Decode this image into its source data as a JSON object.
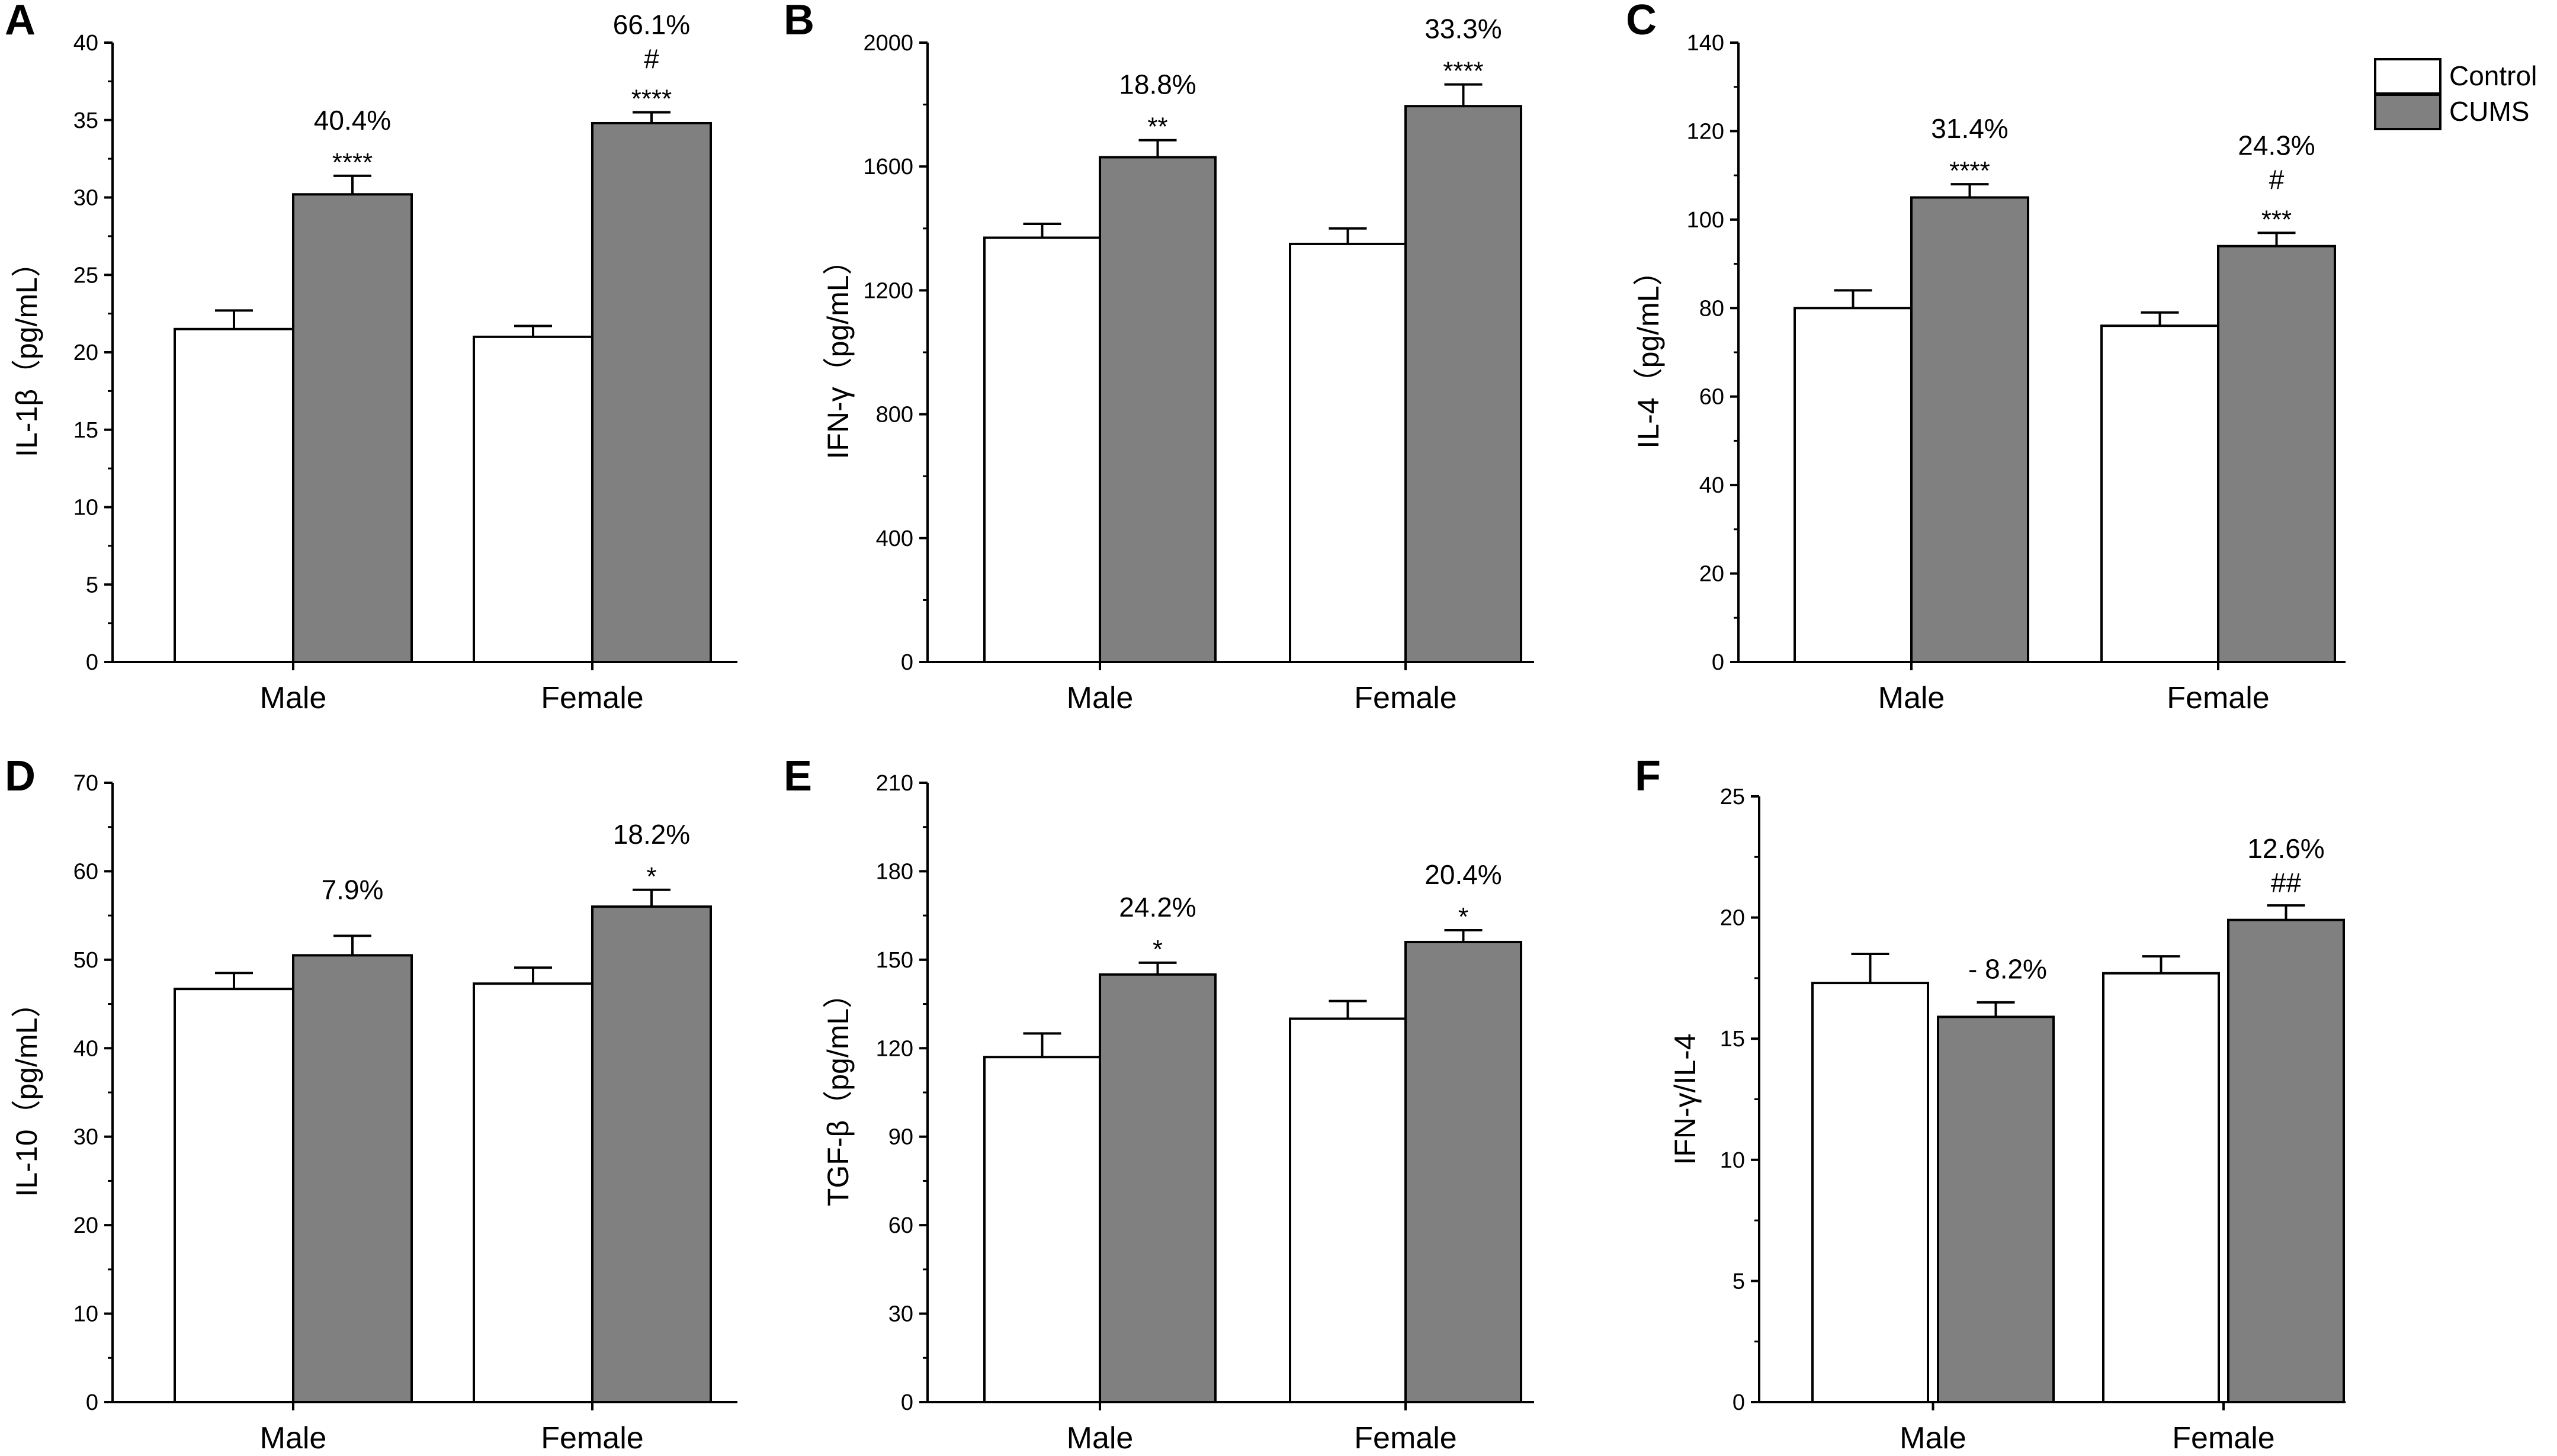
{
  "legend": {
    "entries": [
      {
        "label": "Control",
        "color": "#ffffff"
      },
      {
        "label": "CUMS",
        "color": "#808080"
      }
    ]
  },
  "chart_data": [
    {
      "panel": "A",
      "type": "bar",
      "ylabel": "IL-1β（pg/mL）",
      "categories": [
        "Male",
        "Female"
      ],
      "ylim": [
        0,
        40
      ],
      "yticks": [
        "0",
        "5",
        "10",
        "15",
        "20",
        "25",
        "30",
        "35",
        "40"
      ],
      "series": [
        {
          "name": "Control",
          "values": [
            21.5,
            21.0
          ],
          "errors": [
            1.2,
            0.7
          ]
        },
        {
          "name": "CUMS",
          "values": [
            30.2,
            34.8
          ],
          "errors": [
            1.2,
            0.7
          ]
        }
      ],
      "annotations": [
        {
          "series": "CUMS",
          "category": "Male",
          "percent": "40.4%",
          "hash": "",
          "stars": "****"
        },
        {
          "series": "CUMS",
          "category": "Female",
          "percent": "66.1%",
          "hash": "#",
          "stars": "****"
        }
      ]
    },
    {
      "panel": "B",
      "type": "bar",
      "ylabel": "IFN-γ（pg/mL）",
      "categories": [
        "Male",
        "Female"
      ],
      "ylim": [
        0,
        2000
      ],
      "yticks": [
        "0",
        "400",
        "800",
        "1200",
        "1600",
        "2000"
      ],
      "series": [
        {
          "name": "Control",
          "values": [
            1370,
            1350
          ],
          "errors": [
            45,
            50
          ]
        },
        {
          "name": "CUMS",
          "values": [
            1630,
            1795
          ],
          "errors": [
            55,
            70
          ]
        }
      ],
      "annotations": [
        {
          "series": "CUMS",
          "category": "Male",
          "percent": "18.8%",
          "hash": "",
          "stars": "**"
        },
        {
          "series": "CUMS",
          "category": "Female",
          "percent": "33.3%",
          "hash": "",
          "stars": "****"
        }
      ]
    },
    {
      "panel": "C",
      "type": "bar",
      "ylabel": "IL-4（pg/mL）",
      "categories": [
        "Male",
        "Female"
      ],
      "ylim": [
        0,
        140
      ],
      "yticks": [
        "0",
        "20",
        "40",
        "60",
        "80",
        "100",
        "120",
        "140"
      ],
      "series": [
        {
          "name": "Control",
          "values": [
            80,
            76
          ],
          "errors": [
            4,
            3
          ]
        },
        {
          "name": "CUMS",
          "values": [
            105,
            94
          ],
          "errors": [
            3,
            3
          ]
        }
      ],
      "annotations": [
        {
          "series": "CUMS",
          "category": "Male",
          "percent": "31.4%",
          "hash": "",
          "stars": "****"
        },
        {
          "series": "CUMS",
          "category": "Female",
          "percent": "24.3%",
          "hash": "#",
          "stars": "***"
        }
      ]
    },
    {
      "panel": "D",
      "type": "bar",
      "ylabel": "IL-10（pg/mL）",
      "categories": [
        "Male",
        "Female"
      ],
      "ylim": [
        0,
        70
      ],
      "yticks": [
        "0",
        "10",
        "20",
        "30",
        "40",
        "50",
        "60",
        "70"
      ],
      "series": [
        {
          "name": "Control",
          "values": [
            46.7,
            47.3
          ],
          "errors": [
            1.8,
            1.8
          ]
        },
        {
          "name": "CUMS",
          "values": [
            50.5,
            56.0
          ],
          "errors": [
            2.2,
            1.9
          ]
        }
      ],
      "annotations": [
        {
          "series": "CUMS",
          "category": "Male",
          "percent": "7.9%",
          "hash": "",
          "stars": ""
        },
        {
          "series": "CUMS",
          "category": "Female",
          "percent": "18.2%",
          "hash": "",
          "stars": "*"
        }
      ]
    },
    {
      "panel": "E",
      "type": "bar",
      "ylabel": "TGF-β（pg/mL）",
      "categories": [
        "Male",
        "Female"
      ],
      "ylim": [
        0,
        210
      ],
      "yticks": [
        "0",
        "30",
        "60",
        "90",
        "120",
        "150",
        "180",
        "210"
      ],
      "series": [
        {
          "name": "Control",
          "values": [
            117,
            130
          ],
          "errors": [
            8,
            6
          ]
        },
        {
          "name": "CUMS",
          "values": [
            145,
            156
          ],
          "errors": [
            4,
            4
          ]
        }
      ],
      "annotations": [
        {
          "series": "CUMS",
          "category": "Male",
          "percent": "24.2%",
          "hash": "",
          "stars": "*"
        },
        {
          "series": "CUMS",
          "category": "Female",
          "percent": "20.4%",
          "hash": "",
          "stars": "*"
        }
      ]
    },
    {
      "panel": "F",
      "type": "bar",
      "ylabel": "IFN-γ/IL-4",
      "categories": [
        "Male",
        "Female"
      ],
      "ylim": [
        0,
        25
      ],
      "yticks": [
        "0",
        "5",
        "10",
        "15",
        "20",
        "25"
      ],
      "series": [
        {
          "name": "Control",
          "values": [
            17.3,
            17.7
          ],
          "errors": [
            1.2,
            0.7
          ]
        },
        {
          "name": "CUMS",
          "values": [
            15.9,
            19.9
          ],
          "errors": [
            0.6,
            0.6
          ]
        }
      ],
      "annotations": [
        {
          "series": "CUMS",
          "category": "Male",
          "percent": "- 8.2%",
          "hash": "",
          "stars": ""
        },
        {
          "series": "CUMS",
          "category": "Female",
          "percent": "12.6%",
          "hash": "##",
          "stars": ""
        }
      ]
    }
  ]
}
